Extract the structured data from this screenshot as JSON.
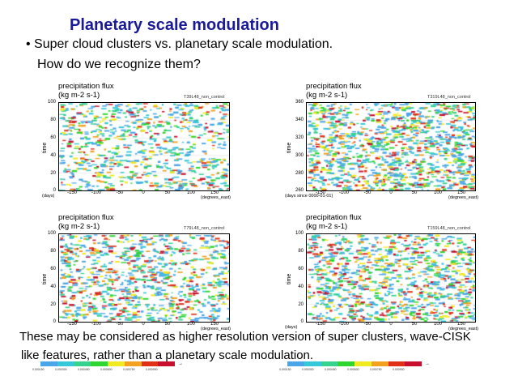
{
  "slide": {
    "title": "Planetary scale modulation",
    "bullet_prefix": "• ",
    "bullet": "Super cloud clusters vs. planetary scale modulation.",
    "question": "How do we recognize them?",
    "conclusion_line1": "These may be considered as higher resolution version of super clusters, wave-CISK",
    "conclusion_line2": "like features, rather than a planetary scale modulation."
  },
  "panels": [
    {
      "case_label": "T39L48_non_control",
      "title_line1": "precipitation flux",
      "title_line2": "(kg m-2 s-1)",
      "ylabel": "time",
      "yticks": [
        "100",
        "80",
        "60",
        "40",
        "20",
        "0"
      ],
      "y_unit": "(days)",
      "xticks": [
        "-150",
        "-100",
        "-50",
        "0",
        "50",
        "100",
        "150"
      ],
      "x_unit": "(degrees_east)",
      "density": 0.42
    },
    {
      "case_label": "T319L48_non_control",
      "title_line1": "precipitation flux",
      "title_line2": "(kg m-2 s-1)",
      "ylabel": "time",
      "yticks": [
        "360",
        "340",
        "320",
        "300",
        "280",
        "260"
      ],
      "y_unit": "(days since 0000-01-01)",
      "xticks": [
        "-150",
        "-100",
        "-50",
        "0",
        "50",
        "100",
        "150"
      ],
      "x_unit": "(degrees_east)",
      "density": 0.62
    },
    {
      "case_label": "T79L48_non_control",
      "title_line1": "precipitation flux",
      "title_line2": "(kg m-2 s-1)",
      "ylabel": "time",
      "yticks": [
        "100",
        "80",
        "60",
        "40",
        "20",
        "0"
      ],
      "y_unit": "",
      "xticks": [
        "-150",
        "-100",
        "-50",
        "0",
        "50",
        "100",
        "150"
      ],
      "x_unit": "(degrees_east)",
      "density": 0.5
    },
    {
      "case_label": "T159L48_non_control",
      "title_line1": "precipitation flux",
      "title_line2": "(kg m-2 s-1)",
      "ylabel": "time",
      "yticks": [
        "100",
        "80",
        "60",
        "40",
        "20",
        "0"
      ],
      "y_unit": "(days)",
      "xticks": [
        "-150",
        "-100",
        "-50",
        "0",
        "50",
        "100",
        "150"
      ],
      "x_unit": "(degrees_east)",
      "density": 0.55
    }
  ],
  "colorbar": {
    "colors": [
      "#4aa6e8",
      "#35c8d8",
      "#37d190",
      "#2fd62f",
      "#f0ea20",
      "#f2a21f",
      "#e23018",
      "#c8102e"
    ],
    "ticks": [
      "0.000150",
      "0.000300",
      "0.000450",
      "0.000600",
      "0.000750",
      "0.000900"
    ]
  },
  "palette": {
    "title_color": "#1a1a99"
  }
}
